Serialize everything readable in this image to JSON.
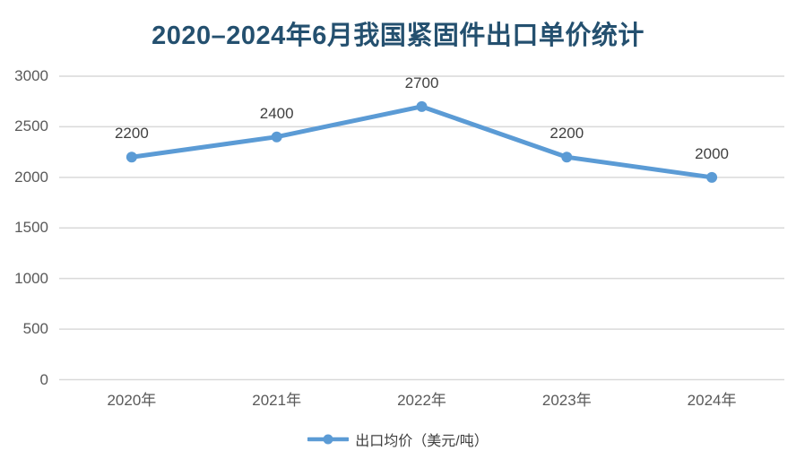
{
  "chart_data": {
    "type": "line",
    "title": "2020–2024年6月我国紧固件出口单价统计",
    "categories": [
      "2020年",
      "2021年",
      "2022年",
      "2023年",
      "2024年"
    ],
    "series": [
      {
        "name": "出口均价（美元/吨）",
        "values": [
          2200,
          2400,
          2700,
          2200,
          2000
        ]
      }
    ],
    "y_ticks": [
      0,
      500,
      1000,
      1500,
      2000,
      2500,
      3000
    ],
    "ylim": [
      0,
      3000
    ],
    "grid": true,
    "legend_position": "bottom",
    "colors": {
      "line": "#5b9bd5",
      "marker": "#5b9bd5",
      "title": "#24506f",
      "gridline": "#d9d9d9",
      "axis_label": "#595959",
      "data_label": "#404040",
      "legend_text": "#404040"
    }
  }
}
